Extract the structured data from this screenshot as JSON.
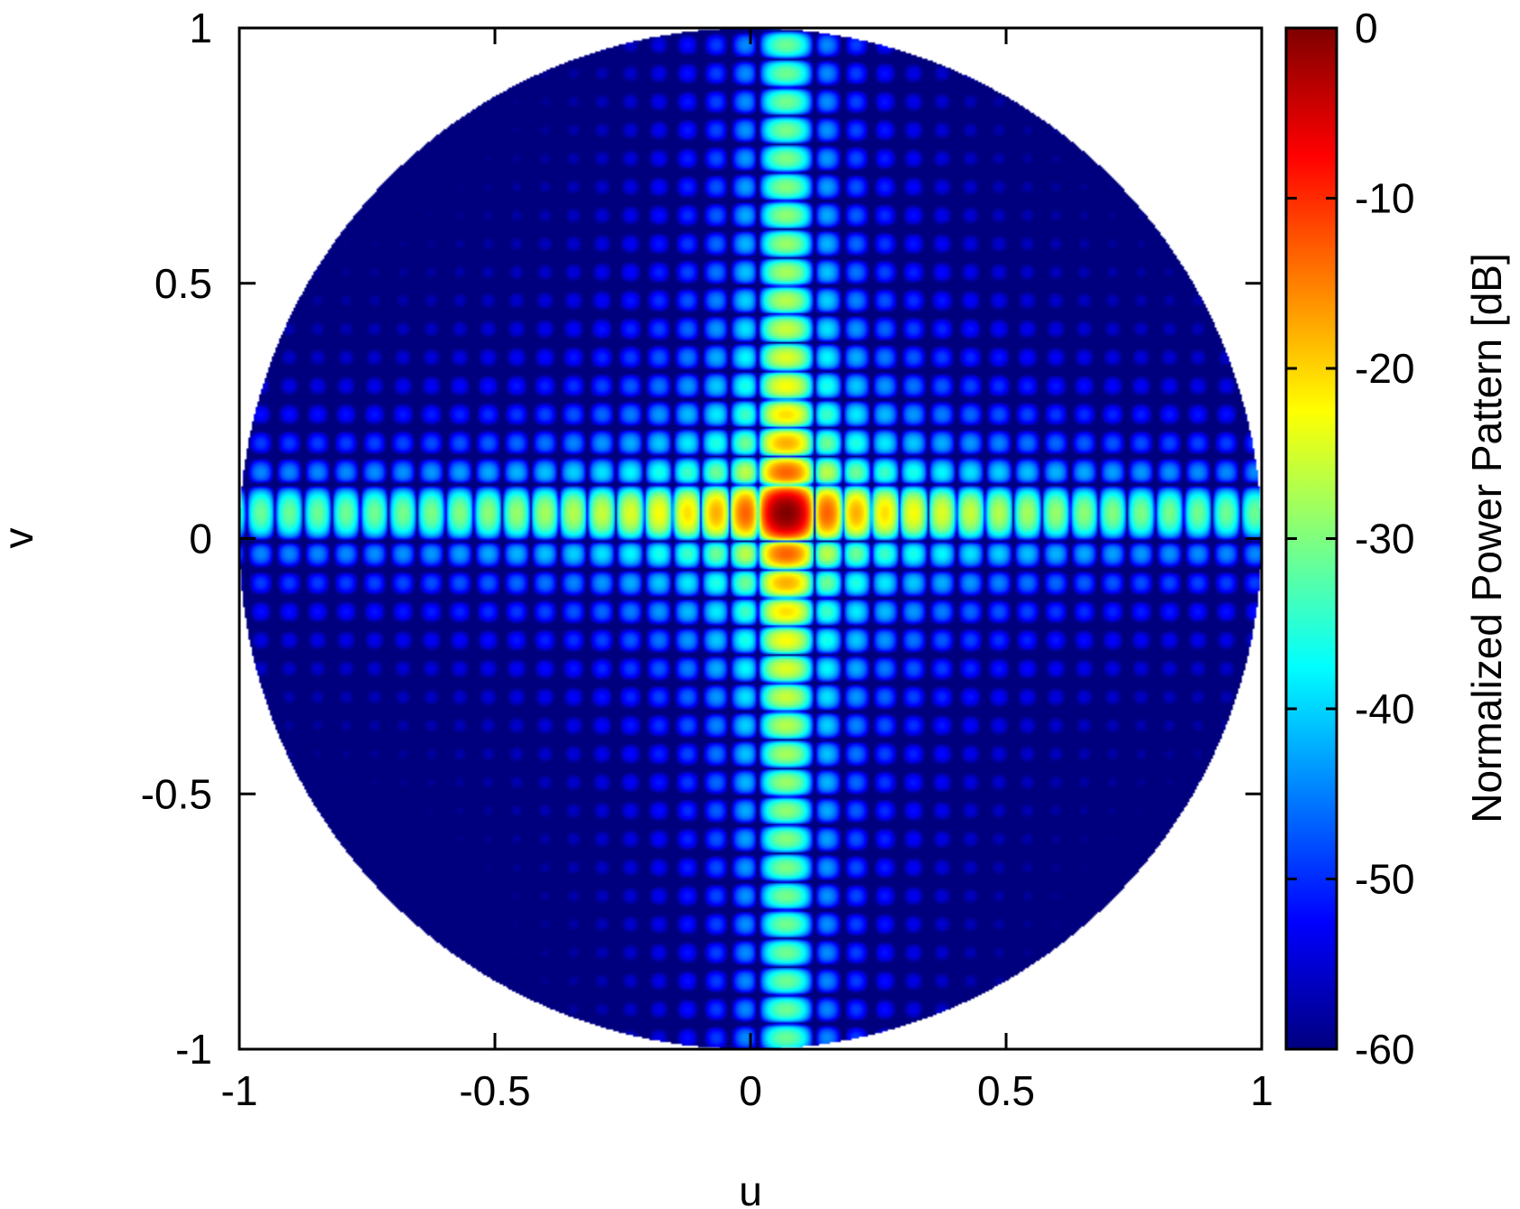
{
  "chart_data": {
    "type": "heatmap",
    "description_of_values": "normalized power pattern in dB over direction cosines u, v; nonzero only inside the unit circle",
    "xlabel": "u",
    "ylabel": "v",
    "xlim": [
      -1,
      1
    ],
    "ylim": [
      -1,
      1
    ],
    "x_ticks": [
      -1,
      -0.5,
      0,
      0.5,
      1
    ],
    "y_ticks": [
      -1,
      -0.5,
      0,
      0.5,
      1
    ],
    "x_tick_labels": [
      "-1",
      "-0.5",
      "0",
      "0.5",
      "1"
    ],
    "y_tick_labels": [
      "-1",
      "-0.5",
      "0",
      "0.5",
      "1"
    ],
    "colorbar": {
      "label": "Normalized Power Pattern [dB]",
      "range": [
        -60,
        0
      ],
      "ticks": [
        0,
        -10,
        -20,
        -30,
        -40,
        -50,
        -60
      ],
      "tick_labels": [
        "0",
        "-10",
        "-20",
        "-30",
        "-40",
        "-50",
        "-60"
      ],
      "colormap": [
        "#00007f",
        "#0000ff",
        "#007fff",
        "#00ffff",
        "#7fff7f",
        "#ffff00",
        "#ff7f00",
        "#ff0000",
        "#7f0000"
      ]
    },
    "main_beam": {
      "u": 0.07,
      "v": 0.05,
      "peak_db": 0
    },
    "sidelobe_pattern": "cross-shaped: principal-plane sidelobes along v = 0.05 (horizontal) and u = 0.07 (vertical) around -30 to -40 dB; off-axis sidelobes about -45 to -50 dB; floor -60 dB",
    "grid": false,
    "legend": "none"
  }
}
